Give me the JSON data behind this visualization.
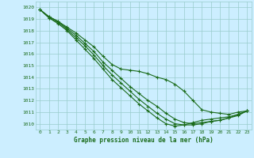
{
  "xlabel": "Graphe pression niveau de la mer (hPa)",
  "x": [
    0,
    1,
    2,
    3,
    4,
    5,
    6,
    7,
    8,
    9,
    10,
    11,
    12,
    13,
    14,
    15,
    16,
    17,
    18,
    19,
    20,
    21,
    22,
    23
  ],
  "lines": [
    [
      1019.8,
      1019.2,
      1018.8,
      1018.3,
      1017.8,
      1017.2,
      1016.6,
      1015.8,
      1015.1,
      1014.7,
      1014.6,
      1014.5,
      1014.3,
      1014.0,
      1013.8,
      1013.4,
      1012.8,
      1012.0,
      1011.2,
      1011.0,
      1010.9,
      1010.8,
      1011.0,
      1011.1
    ],
    [
      1019.8,
      1019.2,
      1018.8,
      1018.2,
      1017.6,
      1016.9,
      1016.2,
      1015.3,
      1014.6,
      1013.9,
      1013.2,
      1012.6,
      1012.0,
      1011.5,
      1010.9,
      1010.4,
      1010.1,
      1010.0,
      1010.1,
      1010.2,
      1010.3,
      1010.5,
      1010.8,
      1011.1
    ],
    [
      1019.8,
      1019.1,
      1018.7,
      1018.1,
      1017.4,
      1016.7,
      1015.9,
      1015.0,
      1014.2,
      1013.5,
      1012.8,
      1012.1,
      1011.5,
      1010.9,
      1010.4,
      1010.0,
      1009.9,
      1009.9,
      1010.0,
      1010.2,
      1010.3,
      1010.5,
      1010.7,
      1011.1
    ],
    [
      1019.8,
      1019.1,
      1018.6,
      1018.0,
      1017.2,
      1016.4,
      1015.6,
      1014.7,
      1013.8,
      1013.1,
      1012.4,
      1011.7,
      1011.1,
      1010.5,
      1010.0,
      1009.8,
      1009.9,
      1010.1,
      1010.3,
      1010.4,
      1010.5,
      1010.6,
      1010.8,
      1011.1
    ]
  ],
  "line_color": "#1a6b1a",
  "bg_color": "#cceeff",
  "grid_color": "#99cccc",
  "text_color": "#1a6b1a",
  "ylim": [
    1009.5,
    1020.5
  ],
  "yticks": [
    1010,
    1011,
    1012,
    1013,
    1014,
    1015,
    1016,
    1017,
    1018,
    1019,
    1020
  ],
  "xticks": [
    0,
    1,
    2,
    3,
    4,
    5,
    6,
    7,
    8,
    9,
    10,
    11,
    12,
    13,
    14,
    15,
    16,
    17,
    18,
    19,
    20,
    21,
    22,
    23
  ],
  "markersize": 2.5,
  "linewidth": 0.8
}
